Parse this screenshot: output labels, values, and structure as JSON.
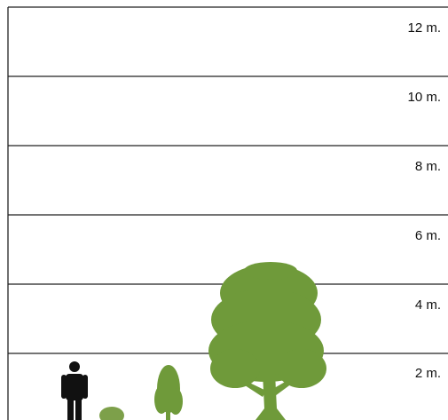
{
  "scale": {
    "labels": [
      "12 m.",
      "10 m.",
      "8 m.",
      "6 m.",
      "4 m.",
      "2 m."
    ]
  }
}
